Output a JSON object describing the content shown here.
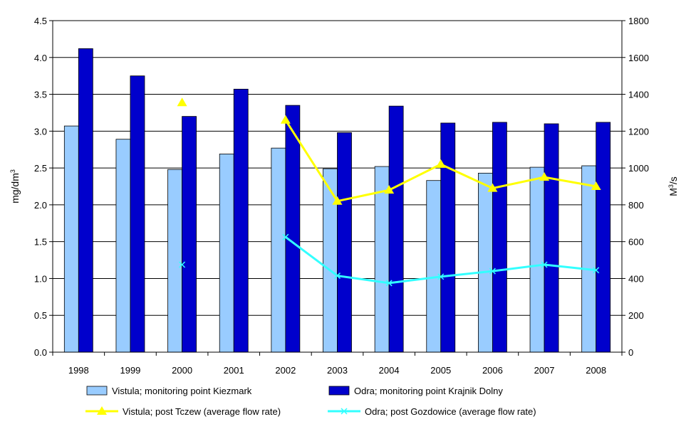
{
  "chart_data": {
    "type": "bar",
    "categories": [
      "1998",
      "1999",
      "2000",
      "2001",
      "2002",
      "2003",
      "2004",
      "2005",
      "2006",
      "2007",
      "2008"
    ],
    "ylabel_left": "mg/dm",
    "ylabel_left_sup": "3",
    "ylabel_right": "M",
    "ylabel_right_sup": "3",
    "ylabel_right_suffix": "/s",
    "ylim_left": [
      0,
      4.5
    ],
    "ylim_right": [
      0,
      1800
    ],
    "yticks_left": [
      "0.0",
      "0.5",
      "1.0",
      "1.5",
      "2.0",
      "2.5",
      "3.0",
      "3.5",
      "4.0",
      "4.5"
    ],
    "yticks_right": [
      "0",
      "200",
      "400",
      "600",
      "800",
      "1000",
      "1200",
      "1400",
      "1600",
      "1800"
    ],
    "grid": true,
    "legend_position": "bottom",
    "series": [
      {
        "name": "Vistula; monitoring point Kiezmark",
        "kind": "bar",
        "axis": "left",
        "color": "#99ccff",
        "values": [
          3.07,
          2.89,
          2.48,
          2.69,
          2.77,
          2.49,
          2.52,
          2.33,
          2.43,
          2.51,
          2.53
        ]
      },
      {
        "name": "Odra; monitoring point Krajnik Dolny",
        "kind": "bar",
        "axis": "left",
        "color": "#0000cc",
        "values": [
          4.12,
          3.75,
          3.2,
          3.57,
          3.35,
          2.98,
          3.34,
          3.11,
          3.12,
          3.1,
          3.12
        ]
      },
      {
        "name": "Vistula; post Tczew (average flow rate)",
        "kind": "line",
        "axis": "right",
        "color": "#ffff00",
        "marker": "triangle",
        "values": [
          null,
          null,
          1355,
          null,
          1260,
          820,
          880,
          1020,
          890,
          950,
          900
        ]
      },
      {
        "name": "Odra; post Gozdowice (average flow rate)",
        "kind": "line",
        "axis": "right",
        "color": "#33ffff",
        "marker": "x",
        "values": [
          null,
          null,
          475,
          null,
          625,
          415,
          375,
          410,
          440,
          475,
          445
        ]
      }
    ]
  }
}
